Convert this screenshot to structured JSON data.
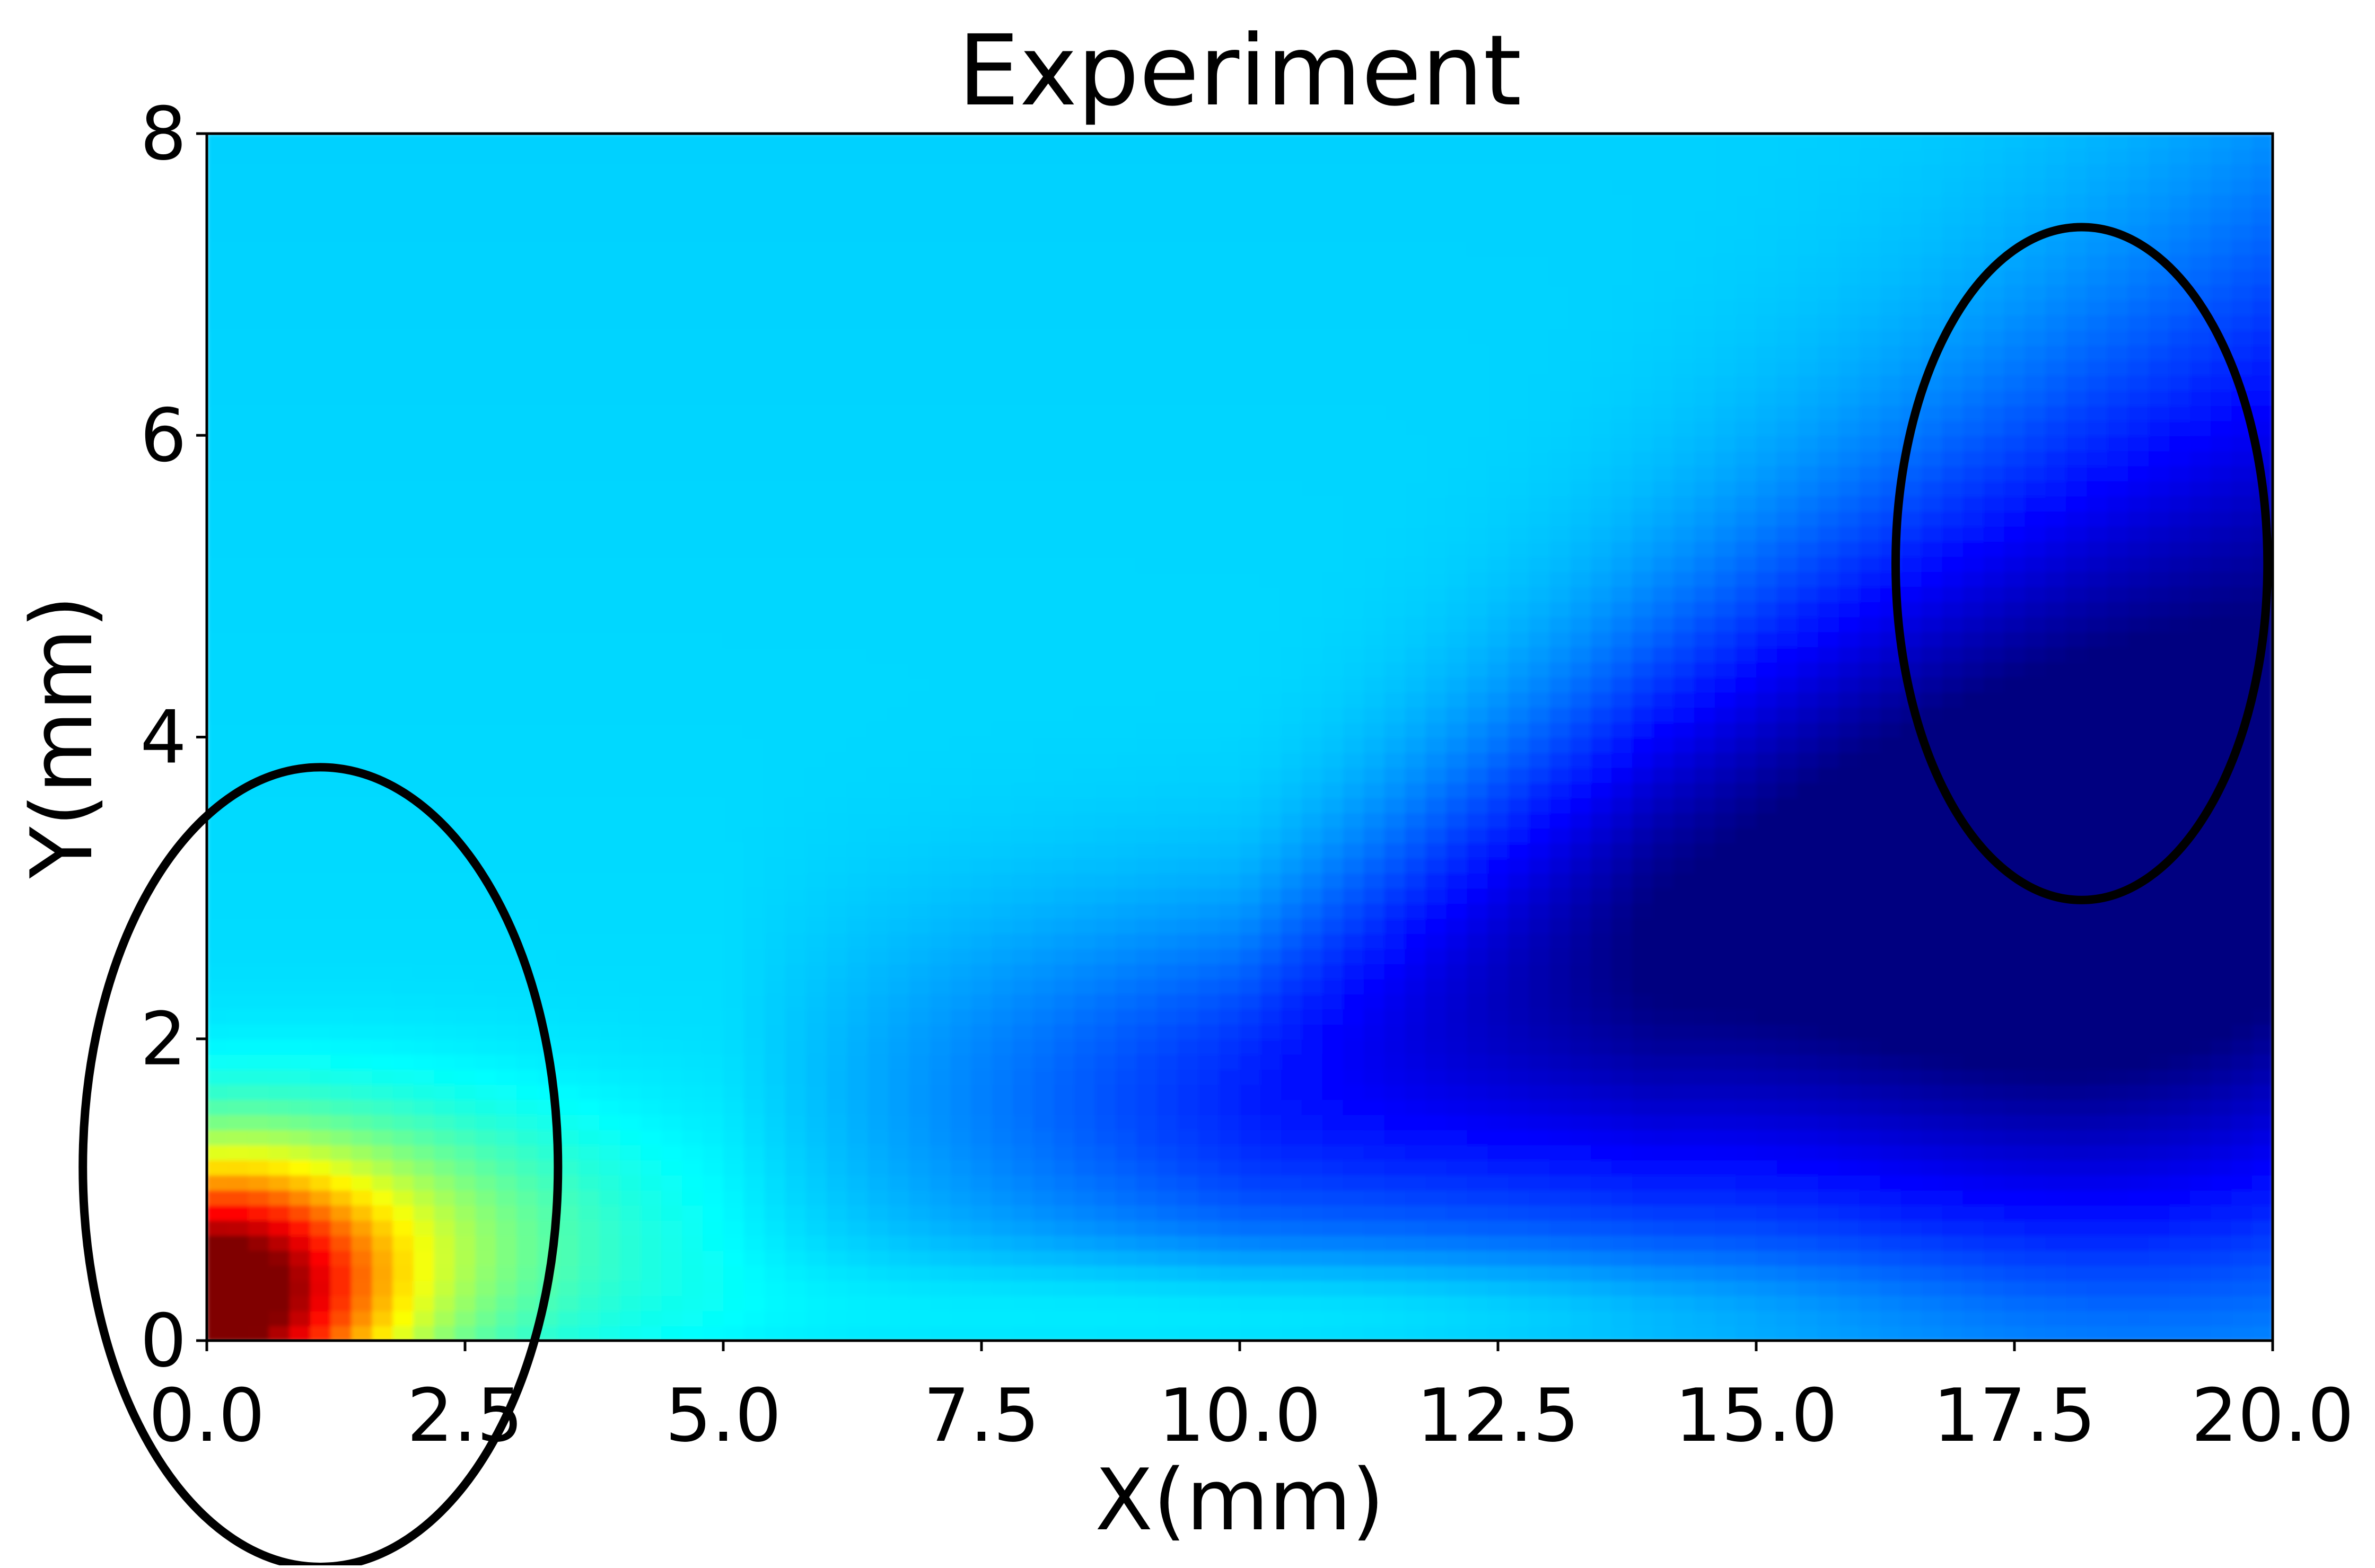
{
  "chart_data": {
    "type": "heatmap",
    "title": "Experiment",
    "xlabel": "X(mm)",
    "ylabel": "Y(mm)",
    "xlim": [
      0,
      20
    ],
    "ylim": [
      0,
      8
    ],
    "x_ticks": [
      0,
      2.5,
      5,
      7.5,
      10,
      12.5,
      15,
      17.5,
      20
    ],
    "x_tick_labels": [
      "0.0",
      "2.5",
      "5.0",
      "7.5",
      "10.0",
      "12.5",
      "15.0",
      "17.5",
      "20.0"
    ],
    "y_ticks": [
      0,
      2,
      4,
      6,
      8
    ],
    "y_tick_labels": [
      "0",
      "2",
      "4",
      "6",
      "8"
    ],
    "colormap": "jet",
    "grid": false,
    "field_description_points": [
      {
        "x": 0.3,
        "y": 0.3,
        "level": 1.0
      },
      {
        "x": 0.9,
        "y": 0.6,
        "level": 0.82
      },
      {
        "x": 1.5,
        "y": 0.6,
        "level": 0.68
      },
      {
        "x": 2.2,
        "y": 1.0,
        "level": 0.55
      },
      {
        "x": 3.5,
        "y": 1.4,
        "level": 0.42
      },
      {
        "x": 12.0,
        "y": 1.5,
        "level": 0.1
      },
      {
        "x": 15.0,
        "y": 2.0,
        "level": 0.03
      },
      {
        "x": 19.0,
        "y": 2.5,
        "level": 0.02
      },
      {
        "x": 18.5,
        "y": 4.0,
        "level": 0.12
      },
      {
        "x": 10.0,
        "y": 6.0,
        "level": 0.33
      }
    ],
    "annotations": [
      {
        "shape": "ellipse",
        "center": [
          1.1,
          1.15
        ],
        "radii": [
          2.3,
          2.65
        ]
      },
      {
        "shape": "ellipse",
        "center": [
          18.15,
          5.15
        ],
        "radii": [
          1.8,
          2.23
        ]
      }
    ],
    "colors": {
      "annotation": "#000000",
      "axis": "#000000"
    }
  }
}
